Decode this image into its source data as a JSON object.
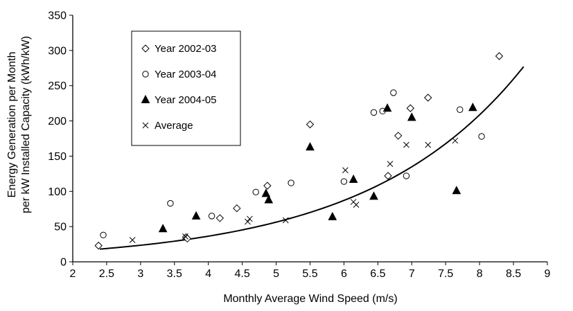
{
  "chart_data": {
    "type": "scatter",
    "xlabel": "Monthly Average Wind Speed (m/s)",
    "ylabel_line1": "Energy Generation per Month",
    "ylabel_line2": "per kW Installed Capacity (kWh/kW)",
    "xlim": [
      2,
      9
    ],
    "ylim": [
      0,
      350
    ],
    "xticks": [
      2,
      2.5,
      3,
      3.5,
      4,
      4.5,
      5,
      5.5,
      6,
      6.5,
      7,
      7.5,
      8,
      8.5,
      9
    ],
    "yticks": [
      0,
      50,
      100,
      150,
      200,
      250,
      300,
      350
    ],
    "xtick_labels": [
      "2",
      "2.5",
      "3",
      "3.5",
      "4",
      "4.5",
      "5",
      "5.5",
      "6",
      "6.5",
      "7",
      "7.5",
      "8",
      "8.5",
      "9"
    ],
    "ytick_labels": [
      "0",
      "50",
      "100",
      "150",
      "200",
      "250",
      "300",
      "350"
    ],
    "grid": false,
    "legend_position": "top-left",
    "series": [
      {
        "name": "Year 2002-03",
        "marker": "diamond-open",
        "points": [
          [
            2.38,
            23
          ],
          [
            3.67,
            35
          ],
          [
            3.69,
            33
          ],
          [
            4.17,
            62
          ],
          [
            4.42,
            76
          ],
          [
            4.87,
            108
          ],
          [
            5.5,
            195
          ],
          [
            6.65,
            122
          ],
          [
            6.8,
            179
          ],
          [
            6.98,
            218
          ],
          [
            7.24,
            233
          ],
          [
            8.29,
            292
          ]
        ]
      },
      {
        "name": "Year 2003-04",
        "marker": "circle-open",
        "points": [
          [
            2.45,
            38
          ],
          [
            3.44,
            83
          ],
          [
            4.05,
            65
          ],
          [
            4.7,
            99
          ],
          [
            5.22,
            112
          ],
          [
            6.0,
            114
          ],
          [
            6.44,
            212
          ],
          [
            6.57,
            214
          ],
          [
            6.73,
            240
          ],
          [
            6.92,
            122
          ],
          [
            7.71,
            216
          ],
          [
            8.03,
            178
          ]
        ]
      },
      {
        "name": "Year 2004-05",
        "marker": "triangle-filled",
        "points": [
          [
            3.33,
            47
          ],
          [
            3.82,
            65
          ],
          [
            4.85,
            97
          ],
          [
            4.89,
            88
          ],
          [
            5.5,
            163
          ],
          [
            5.83,
            64
          ],
          [
            6.14,
            117
          ],
          [
            6.44,
            93
          ],
          [
            6.64,
            218
          ],
          [
            7.0,
            205
          ],
          [
            7.66,
            101
          ],
          [
            7.9,
            219
          ]
        ]
      },
      {
        "name": "Average",
        "marker": "x",
        "points": [
          [
            2.88,
            31
          ],
          [
            3.66,
            36
          ],
          [
            4.58,
            57
          ],
          [
            4.61,
            61
          ],
          [
            5.14,
            59
          ],
          [
            6.02,
            130
          ],
          [
            6.14,
            85
          ],
          [
            6.18,
            81
          ],
          [
            6.68,
            139
          ],
          [
            6.92,
            166
          ],
          [
            7.24,
            166
          ],
          [
            7.64,
            172
          ]
        ]
      }
    ],
    "trendline": {
      "type": "exponential",
      "x_start": 2.4,
      "x_end": 8.65,
      "a": 6.35,
      "b": 0.4365
    }
  }
}
